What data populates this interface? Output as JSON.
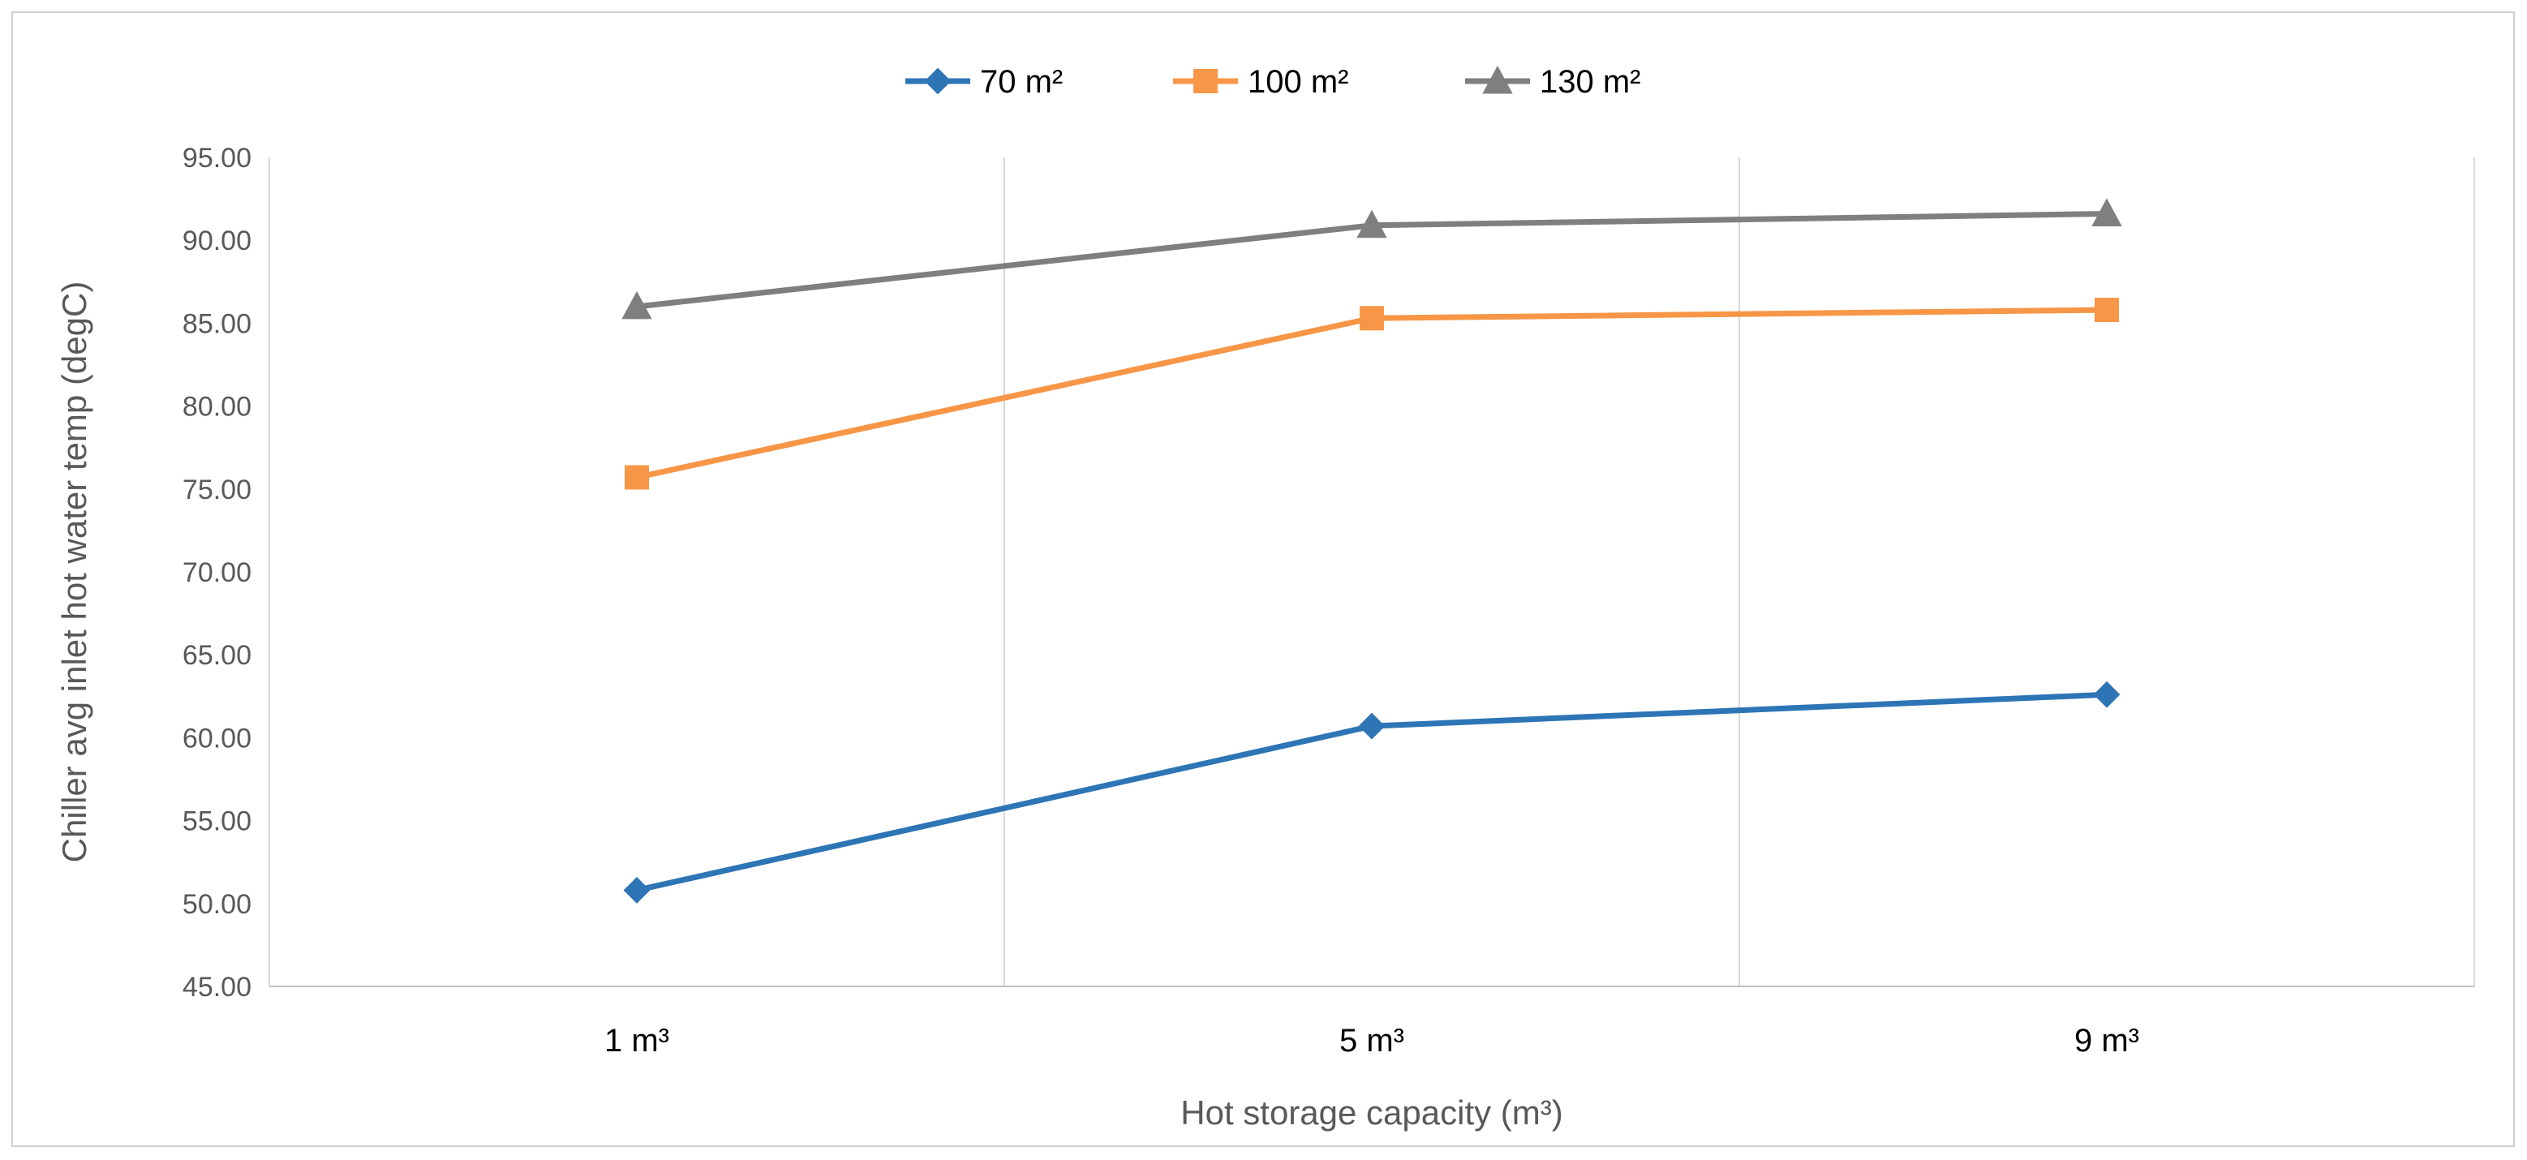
{
  "chart_data": {
    "type": "line",
    "title": "",
    "xlabel": "Hot storage capacity (m³)",
    "ylabel": "Chiller avg inlet  hot water temp (degC)",
    "categories": [
      "1 m³",
      "5 m³",
      "9 m³"
    ],
    "ylim": [
      45,
      95
    ],
    "yticks": [
      "45.00",
      "50.00",
      "55.00",
      "60.00",
      "65.00",
      "70.00",
      "75.00",
      "80.00",
      "85.00",
      "90.00",
      "95.00"
    ],
    "grid": "vertical",
    "legend_position": "top",
    "series": [
      {
        "name": "70 m²",
        "marker": "diamond",
        "color": "#2E75B6",
        "values": [
          50.8,
          60.7,
          62.6
        ]
      },
      {
        "name": "100 m²",
        "marker": "square",
        "color": "#F79646",
        "values": [
          75.7,
          85.3,
          85.8
        ]
      },
      {
        "name": "130 m²",
        "marker": "triangle",
        "color": "#7F7F7F",
        "values": [
          86.0,
          90.9,
          91.6
        ]
      }
    ]
  }
}
